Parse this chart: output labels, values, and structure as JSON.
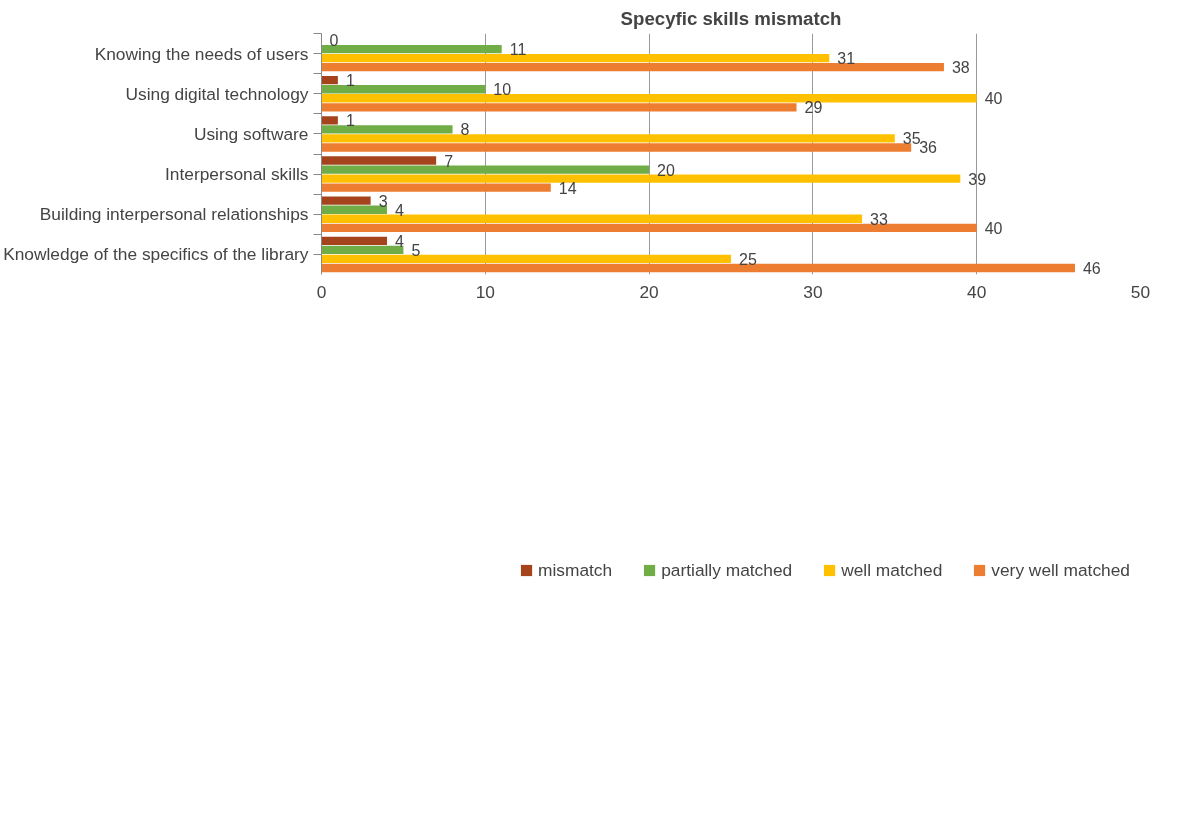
{
  "chart_data": {
    "type": "bar",
    "orientation": "horizontal",
    "title": "Specyfic skills mismatch",
    "categories": [
      "Knowing the needs of users",
      "Using digital technology",
      "Using software",
      "Interpersonal skills",
      "Building interpersonal relationships",
      "Knowledge of the specifics of the library"
    ],
    "series": [
      {
        "name": "mismatch",
        "color": "#a5441c",
        "values": [
          0,
          1,
          1,
          7,
          3,
          4
        ]
      },
      {
        "name": "partially matched",
        "color": "#70ad47",
        "values": [
          11,
          10,
          8,
          20,
          4,
          5
        ]
      },
      {
        "name": "well matched",
        "color": "#ffc000",
        "values": [
          31,
          40,
          35,
          39,
          33,
          25
        ]
      },
      {
        "name": "very well matched",
        "color": "#ed7d31",
        "values": [
          38,
          29,
          36,
          14,
          40,
          46
        ]
      }
    ],
    "xlim": [
      0,
      50
    ],
    "xticks": [
      0,
      10,
      20,
      30,
      40,
      50
    ],
    "grid": "x",
    "legend": "bottom",
    "data_labels": true
  }
}
